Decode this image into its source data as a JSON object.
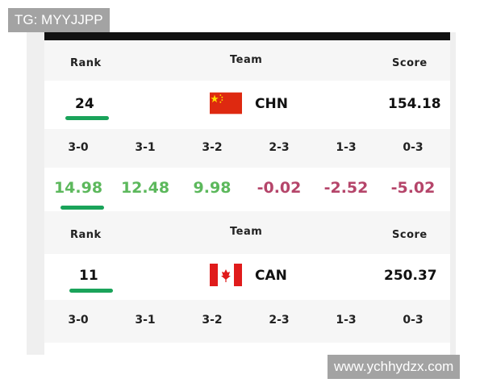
{
  "watermarks": {
    "top_left": "TG: MYYJJPP",
    "bottom_right": "www.ychhydzx.com"
  },
  "colors": {
    "positive": "#5cb85c",
    "negative": "#b5456a",
    "underline": "#1aa35a"
  },
  "headers": {
    "rank": "Rank",
    "team": "Team",
    "score": "Score"
  },
  "outcomes": [
    "3-0",
    "3-1",
    "3-2",
    "2-3",
    "1-3",
    "0-3"
  ],
  "teams": [
    {
      "rank": "24",
      "code": "CHN",
      "flag": "china-flag",
      "score": "154.18",
      "values": [
        "14.98",
        "12.48",
        "9.98",
        "-0.02",
        "-2.52",
        "-5.02"
      ]
    },
    {
      "rank": "11",
      "code": "CAN",
      "flag": "canada-flag",
      "score": "250.37"
    }
  ]
}
